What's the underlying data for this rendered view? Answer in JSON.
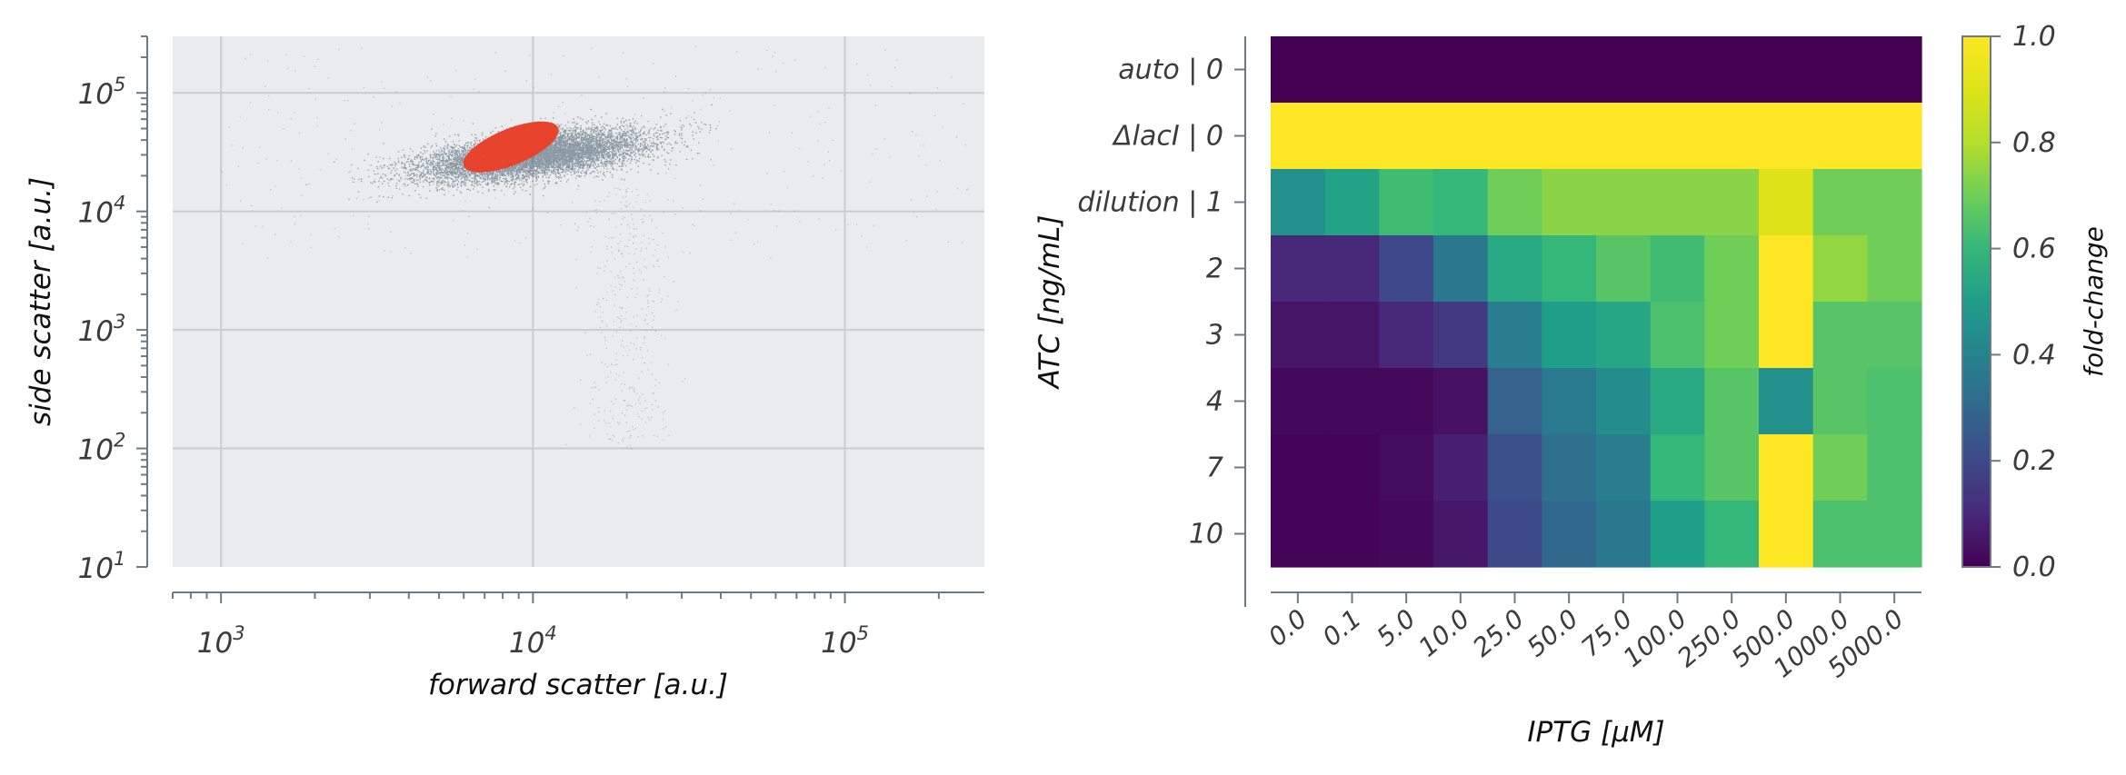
{
  "chart_data": [
    {
      "type": "scatter",
      "xlabel": "forward scatter [a.u.]",
      "ylabel": "side scatter [a.u.]",
      "xscale": "log",
      "yscale": "log",
      "xlim": [
        700,
        280000
      ],
      "ylim": [
        10,
        300000
      ],
      "xticks": [
        {
          "value": 1000,
          "base": "10",
          "exp": "3"
        },
        {
          "value": 10000,
          "base": "10",
          "exp": "4"
        },
        {
          "value": 100000,
          "base": "10",
          "exp": "5"
        }
      ],
      "yticks": [
        {
          "value": 10,
          "base": "10",
          "exp": "1"
        },
        {
          "value": 100,
          "base": "10",
          "exp": "2"
        },
        {
          "value": 1000,
          "base": "10",
          "exp": "3"
        },
        {
          "value": 10000,
          "base": "10",
          "exp": "4"
        },
        {
          "value": 100000,
          "base": "10",
          "exp": "5"
        }
      ],
      "grid": true,
      "background": "#eaebed",
      "series": [
        {
          "color": "#3d5568",
          "center_x": 10000,
          "center_y": 30000
        },
        {
          "color": "#e8432d",
          "center_x": 8500,
          "center_y": 35000
        }
      ]
    },
    {
      "type": "heatmap",
      "xlabel": "IPTG [µM]",
      "ylabel": "ATC [ng/mL]",
      "colorbar_label": "fold-change",
      "colormap": "viridis",
      "vmin": 0.0,
      "vmax": 1.0,
      "colorbar_ticks": [
        "0.0",
        "0.2",
        "0.4",
        "0.6",
        "0.8",
        "1.0"
      ],
      "x_categories": [
        "0.0",
        "0.1",
        "5.0",
        "10.0",
        "25.0",
        "50.0",
        "75.0",
        "100.0",
        "250.0",
        "500.0",
        "1000.0",
        "5000.0"
      ],
      "y_categories": [
        "auto | 0",
        "ΔlacI | 0",
        "dilution | 1",
        "2",
        "3",
        "4",
        "7",
        "10"
      ],
      "values": [
        [
          0.0,
          0.0,
          0.0,
          0.0,
          0.0,
          0.0,
          0.0,
          0.0,
          0.0,
          0.0,
          0.0,
          0.0
        ],
        [
          1.0,
          1.0,
          1.0,
          1.0,
          1.0,
          1.0,
          1.0,
          1.0,
          1.0,
          1.0,
          1.0,
          1.0
        ],
        [
          0.45,
          0.52,
          0.62,
          0.6,
          0.7,
          0.74,
          0.74,
          0.74,
          0.74,
          0.9,
          0.7,
          0.7
        ],
        [
          0.1,
          0.1,
          0.2,
          0.36,
          0.54,
          0.6,
          0.66,
          0.62,
          0.7,
          1.0,
          0.75,
          0.7
        ],
        [
          0.05,
          0.05,
          0.1,
          0.15,
          0.38,
          0.5,
          0.53,
          0.64,
          0.7,
          1.0,
          0.66,
          0.66
        ],
        [
          0.02,
          0.02,
          0.02,
          0.04,
          0.28,
          0.37,
          0.44,
          0.54,
          0.66,
          0.45,
          0.66,
          0.64
        ],
        [
          0.01,
          0.01,
          0.03,
          0.08,
          0.22,
          0.33,
          0.38,
          0.6,
          0.66,
          1.0,
          0.7,
          0.64
        ],
        [
          0.01,
          0.01,
          0.02,
          0.06,
          0.2,
          0.3,
          0.36,
          0.5,
          0.6,
          1.0,
          0.64,
          0.64
        ]
      ]
    }
  ]
}
